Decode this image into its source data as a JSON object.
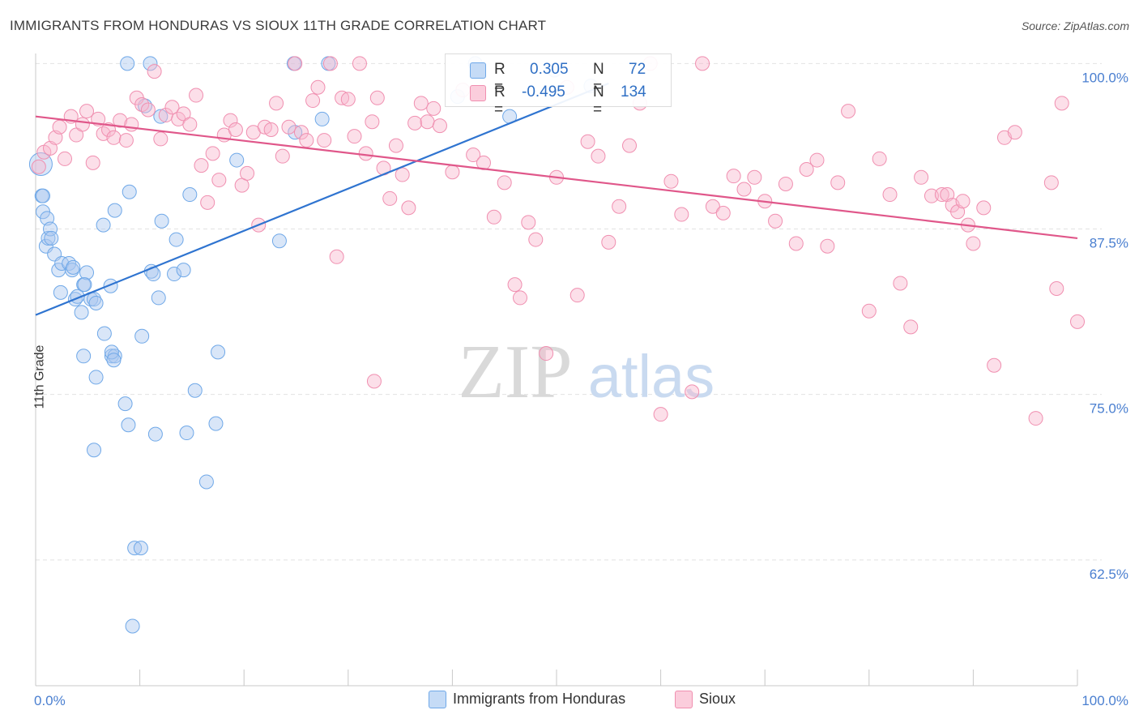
{
  "title": "IMMIGRANTS FROM HONDURAS VS SIOUX 11TH GRADE CORRELATION CHART",
  "source": "Source: ZipAtlas.com",
  "watermark": {
    "zip": "ZIP",
    "atlas": "atlas"
  },
  "legend_top": {
    "rows": [
      {
        "r_label": "R =",
        "r_value": "0.305",
        "n_label": "N =",
        "n_value": "72",
        "color": "#6fa8e8"
      },
      {
        "r_label": "R =",
        "r_value": "-0.495",
        "n_label": "N =",
        "n_value": "134",
        "color": "#f08fb0"
      }
    ]
  },
  "legend_bottom": [
    {
      "label": "Immigrants from Honduras",
      "color": "#6fa8e8"
    },
    {
      "label": "Sioux",
      "color": "#f08fb0"
    }
  ],
  "chart_data": {
    "type": "scatter",
    "title": "IMMIGRANTS FROM HONDURAS VS SIOUX 11TH GRADE CORRELATION CHART",
    "xlabel": "",
    "ylabel": "11th Grade",
    "xlim": [
      0,
      100
    ],
    "ylim": [
      53,
      101
    ],
    "x_tick_labels": [
      "0.0%",
      "100.0%"
    ],
    "y_ticks": [
      62.5,
      75.0,
      87.5,
      100.0
    ],
    "y_tick_labels": [
      "62.5%",
      "75.0%",
      "87.5%",
      "100.0%"
    ],
    "grid": true,
    "legend_placement": "top-center",
    "series": [
      {
        "name": "Immigrants from Honduras",
        "color": "#6fa8e8",
        "line_color": "#2f74d0",
        "trend": {
          "x": [
            0,
            55
          ],
          "y": [
            81.0,
            98.5
          ]
        },
        "points": [
          [
            0.5,
            92.4
          ],
          [
            0.6,
            90.0
          ],
          [
            0.7,
            88.8
          ],
          [
            0.7,
            90.0
          ],
          [
            1.1,
            88.3
          ],
          [
            1.0,
            86.2
          ],
          [
            1.2,
            86.8
          ],
          [
            1.4,
            87.5
          ],
          [
            1.5,
            86.8
          ],
          [
            1.8,
            85.6
          ],
          [
            2.2,
            84.4
          ],
          [
            2.5,
            84.9
          ],
          [
            2.4,
            82.7
          ],
          [
            3.2,
            84.9
          ],
          [
            3.5,
            84.4
          ],
          [
            3.8,
            82.2
          ],
          [
            4.0,
            82.4
          ],
          [
            4.4,
            81.2
          ],
          [
            4.6,
            83.3
          ],
          [
            4.9,
            84.2
          ],
          [
            5.3,
            82.2
          ],
          [
            5.6,
            82.2
          ],
          [
            5.8,
            81.9
          ],
          [
            4.7,
            83.3
          ],
          [
            3.6,
            84.6
          ],
          [
            6.5,
            87.8
          ],
          [
            7.2,
            83.2
          ],
          [
            7.6,
            88.9
          ],
          [
            6.6,
            79.6
          ],
          [
            4.6,
            77.9
          ],
          [
            5.8,
            76.3
          ],
          [
            7.3,
            77.9
          ],
          [
            7.6,
            77.9
          ],
          [
            7.3,
            78.2
          ],
          [
            7.5,
            77.6
          ],
          [
            9.0,
            90.3
          ],
          [
            10.2,
            79.4
          ],
          [
            11.1,
            84.3
          ],
          [
            11.3,
            84.1
          ],
          [
            11.8,
            82.3
          ],
          [
            12.1,
            88.1
          ],
          [
            13.3,
            84.1
          ],
          [
            13.5,
            86.7
          ],
          [
            14.2,
            84.4
          ],
          [
            14.8,
            90.1
          ],
          [
            15.3,
            75.3
          ],
          [
            12.0,
            96.0
          ],
          [
            11.0,
            100.0
          ],
          [
            10.5,
            96.8
          ],
          [
            8.8,
            100.0
          ],
          [
            8.6,
            74.3
          ],
          [
            8.9,
            72.7
          ],
          [
            11.5,
            72.0
          ],
          [
            14.5,
            72.1
          ],
          [
            17.3,
            72.8
          ],
          [
            16.4,
            68.4
          ],
          [
            5.6,
            70.8
          ],
          [
            17.5,
            78.2
          ],
          [
            9.5,
            63.4
          ],
          [
            10.1,
            63.4
          ],
          [
            9.3,
            57.5
          ],
          [
            23.4,
            86.6
          ],
          [
            19.3,
            92.7
          ],
          [
            24.9,
            94.8
          ],
          [
            27.5,
            95.8
          ],
          [
            24.8,
            100.0
          ],
          [
            28.1,
            100.0
          ],
          [
            40.5,
            97.5
          ],
          [
            42.2,
            100.0
          ],
          [
            45.5,
            96.0
          ],
          [
            49.8,
            99.5
          ],
          [
            53.3,
            98.3
          ]
        ]
      },
      {
        "name": "Sioux",
        "color": "#f08fb0",
        "line_color": "#e0578a",
        "trend": {
          "x": [
            0,
            100
          ],
          "y": [
            96.0,
            86.8
          ]
        },
        "points": [
          [
            0.3,
            92.2
          ],
          [
            0.8,
            93.3
          ],
          [
            1.4,
            93.6
          ],
          [
            1.9,
            94.4
          ],
          [
            2.3,
            95.2
          ],
          [
            2.8,
            92.8
          ],
          [
            3.4,
            96.0
          ],
          [
            3.9,
            94.6
          ],
          [
            4.5,
            95.4
          ],
          [
            4.9,
            96.4
          ],
          [
            5.5,
            92.5
          ],
          [
            6.0,
            95.8
          ],
          [
            6.5,
            94.7
          ],
          [
            7.0,
            95.0
          ],
          [
            7.5,
            94.4
          ],
          [
            8.1,
            95.7
          ],
          [
            8.7,
            94.2
          ],
          [
            9.2,
            95.4
          ],
          [
            9.7,
            97.4
          ],
          [
            10.2,
            96.9
          ],
          [
            10.8,
            96.5
          ],
          [
            11.4,
            99.4
          ],
          [
            12.0,
            94.3
          ],
          [
            12.5,
            96.1
          ],
          [
            13.1,
            96.7
          ],
          [
            13.7,
            95.8
          ],
          [
            14.2,
            96.2
          ],
          [
            14.8,
            95.4
          ],
          [
            15.4,
            97.6
          ],
          [
            15.9,
            92.3
          ],
          [
            16.5,
            89.5
          ],
          [
            17.0,
            93.2
          ],
          [
            17.6,
            91.2
          ],
          [
            18.1,
            94.6
          ],
          [
            18.7,
            95.7
          ],
          [
            19.2,
            95.0
          ],
          [
            19.8,
            90.8
          ],
          [
            20.3,
            91.7
          ],
          [
            20.9,
            94.8
          ],
          [
            21.4,
            87.8
          ],
          [
            22.0,
            95.2
          ],
          [
            22.6,
            95.0
          ],
          [
            23.1,
            97.0
          ],
          [
            23.7,
            93.0
          ],
          [
            24.3,
            95.2
          ],
          [
            24.9,
            100.0
          ],
          [
            25.5,
            94.8
          ],
          [
            26.0,
            94.2
          ],
          [
            26.6,
            97.2
          ],
          [
            27.1,
            98.2
          ],
          [
            27.7,
            94.2
          ],
          [
            28.3,
            100.0
          ],
          [
            28.9,
            85.4
          ],
          [
            29.4,
            97.4
          ],
          [
            30.0,
            97.3
          ],
          [
            30.6,
            94.5
          ],
          [
            31.1,
            100.0
          ],
          [
            31.7,
            93.2
          ],
          [
            32.3,
            95.6
          ],
          [
            32.8,
            97.4
          ],
          [
            33.4,
            92.1
          ],
          [
            34.0,
            89.8
          ],
          [
            34.6,
            93.8
          ],
          [
            35.2,
            91.6
          ],
          [
            35.8,
            89.1
          ],
          [
            36.4,
            95.5
          ],
          [
            37.0,
            97.0
          ],
          [
            37.6,
            95.6
          ],
          [
            38.2,
            96.6
          ],
          [
            38.8,
            95.3
          ],
          [
            32.5,
            76.0
          ],
          [
            40.0,
            91.8
          ],
          [
            41.0,
            98.0
          ],
          [
            42.0,
            93.1
          ],
          [
            43.0,
            92.5
          ],
          [
            44.0,
            88.4
          ],
          [
            45.0,
            91.0
          ],
          [
            46.0,
            83.3
          ],
          [
            46.5,
            82.3
          ],
          [
            47.3,
            88.0
          ],
          [
            48.0,
            86.7
          ],
          [
            49.0,
            78.1
          ],
          [
            50.0,
            91.4
          ],
          [
            51.0,
            98.2
          ],
          [
            52.0,
            82.5
          ],
          [
            53.0,
            94.1
          ],
          [
            54.0,
            93.0
          ],
          [
            55.0,
            86.5
          ],
          [
            56.0,
            89.2
          ],
          [
            57.0,
            93.8
          ],
          [
            58.0,
            97.0
          ],
          [
            59.0,
            100.0
          ],
          [
            60.0,
            73.5
          ],
          [
            61.0,
            91.1
          ],
          [
            62.0,
            88.6
          ],
          [
            63.0,
            75.2
          ],
          [
            64.0,
            100.0
          ],
          [
            65.0,
            89.2
          ],
          [
            66.0,
            88.7
          ],
          [
            67.0,
            91.5
          ],
          [
            68.0,
            90.5
          ],
          [
            69.0,
            91.4
          ],
          [
            70.0,
            89.6
          ],
          [
            71.0,
            88.1
          ],
          [
            72.0,
            90.9
          ],
          [
            73.0,
            86.4
          ],
          [
            74.0,
            92.0
          ],
          [
            75.0,
            92.7
          ],
          [
            76.0,
            86.2
          ],
          [
            77.0,
            91.0
          ],
          [
            78.0,
            96.4
          ],
          [
            80.0,
            81.3
          ],
          [
            81.0,
            92.8
          ],
          [
            82.0,
            90.1
          ],
          [
            83.0,
            83.4
          ],
          [
            84.0,
            80.1
          ],
          [
            85.0,
            91.4
          ],
          [
            86.0,
            90.0
          ],
          [
            87.0,
            90.1
          ],
          [
            87.5,
            90.1
          ],
          [
            88.0,
            89.3
          ],
          [
            88.5,
            88.8
          ],
          [
            89.0,
            89.6
          ],
          [
            89.5,
            87.8
          ],
          [
            90.0,
            86.4
          ],
          [
            91.0,
            89.1
          ],
          [
            92.0,
            77.2
          ],
          [
            93.0,
            94.4
          ],
          [
            94.0,
            94.8
          ],
          [
            96.0,
            73.2
          ],
          [
            97.5,
            91.0
          ],
          [
            98.0,
            83.0
          ],
          [
            98.5,
            97.0
          ],
          [
            100.0,
            80.5
          ]
        ]
      }
    ]
  }
}
